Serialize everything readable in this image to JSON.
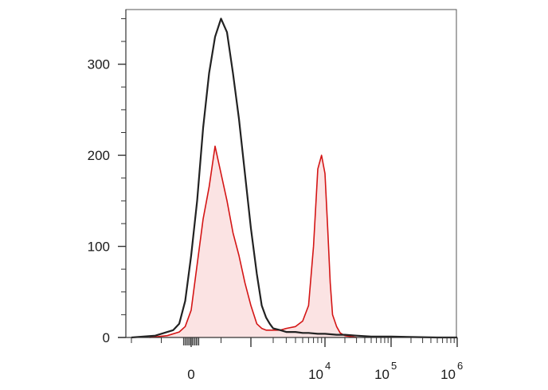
{
  "chart_data": {
    "type": "area",
    "title": "",
    "xlabel": "",
    "ylabel": "",
    "x_scale": "biexponential",
    "ylim": [
      0,
      360
    ],
    "grid": false,
    "y_ticks": [
      {
        "value": 0,
        "label": "0"
      },
      {
        "value": 100,
        "label": "100"
      },
      {
        "value": 200,
        "label": "200"
      },
      {
        "value": 300,
        "label": "300"
      }
    ],
    "x_ticks": [
      {
        "value": 0,
        "label": "0",
        "sup": ""
      },
      {
        "value": 10000,
        "label": "10",
        "sup": "4"
      },
      {
        "value": 100000,
        "label": "10",
        "sup": "5"
      },
      {
        "value": 1000000,
        "label": "10",
        "sup": "6"
      }
    ],
    "series": [
      {
        "color": "#222222",
        "fill": "none",
        "x": [
          -1000,
          -600,
          -300,
          -200,
          -100,
          0,
          100,
          200,
          300,
          400,
          500,
          600,
          700,
          800,
          900,
          1000,
          1200,
          1400,
          1600,
          1800,
          2000,
          2500,
          3000,
          4000,
          5000,
          6000,
          8000,
          10000,
          15000,
          20000,
          30000,
          50000,
          100000,
          500000,
          1000000
        ],
        "values": [
          0,
          2,
          8,
          15,
          40,
          90,
          150,
          230,
          290,
          330,
          350,
          335,
          290,
          240,
          180,
          120,
          70,
          35,
          22,
          15,
          10,
          8,
          6,
          6,
          5,
          5,
          4,
          4,
          3,
          3,
          2,
          1,
          1,
          0,
          0
        ]
      },
      {
        "color": "#d41515",
        "fill": "#fbe3e3",
        "x": [
          -700,
          -400,
          -200,
          -100,
          0,
          100,
          200,
          300,
          400,
          500,
          600,
          700,
          800,
          900,
          1000,
          1200,
          1400,
          1600,
          2000,
          2500,
          3000,
          4000,
          5000,
          6000,
          7000,
          8000,
          9000,
          10000,
          11000,
          12000,
          13000,
          15000,
          17000,
          20000,
          30000
        ],
        "values": [
          0,
          2,
          6,
          12,
          30,
          80,
          130,
          165,
          210,
          180,
          150,
          115,
          90,
          60,
          35,
          15,
          10,
          8,
          8,
          8,
          10,
          12,
          18,
          35,
          100,
          185,
          200,
          180,
          120,
          60,
          25,
          12,
          5,
          2,
          0
        ]
      }
    ]
  }
}
